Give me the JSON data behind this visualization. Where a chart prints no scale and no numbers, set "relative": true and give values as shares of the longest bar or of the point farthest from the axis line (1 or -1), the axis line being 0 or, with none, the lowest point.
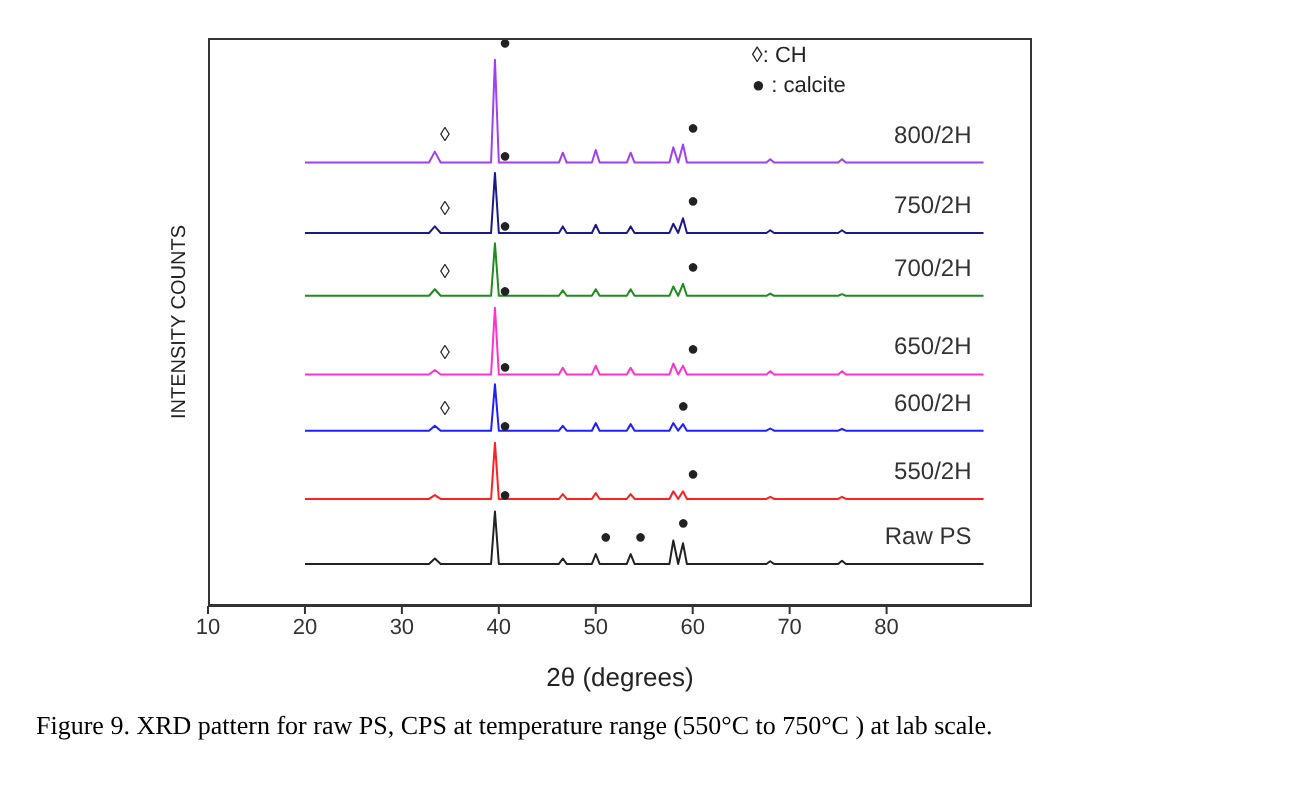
{
  "chart_data": {
    "type": "line",
    "relative": true,
    "xlabel": "2θ (degrees)",
    "ylabel": "INTENSITY COUNTS",
    "xlim": [
      10,
      95
    ],
    "xticks": [
      10,
      20,
      30,
      40,
      50,
      60,
      70,
      80
    ],
    "grid": false,
    "legend": false,
    "marker": "none",
    "line_style": "solid",
    "x": [
      20,
      30,
      32.8,
      33.4,
      34,
      39.2,
      39.6,
      40.0,
      46.2,
      46.6,
      47.0,
      49.6,
      50.0,
      50.4,
      53.2,
      53.6,
      54.0,
      57.6,
      58.0,
      58.5,
      59.0,
      59.4,
      67.6,
      68,
      68.4,
      75,
      75.4,
      75.8,
      90
    ],
    "series": [
      {
        "name": "800/2H",
        "color": "#a040f0",
        "values": [
          0.812,
          0.812,
          0.812,
          0.832,
          0.812,
          0.812,
          1.0,
          0.812,
          0.812,
          0.83,
          0.812,
          0.812,
          0.835,
          0.812,
          0.812,
          0.83,
          0.812,
          0.812,
          0.84,
          0.812,
          0.845,
          0.812,
          0.812,
          0.818,
          0.812,
          0.812,
          0.818,
          0.812,
          0.812
        ]
      },
      {
        "name": "750/2H",
        "color": "#1a1a8c",
        "values": [
          0.683,
          0.683,
          0.683,
          0.695,
          0.683,
          0.683,
          0.793,
          0.683,
          0.683,
          0.695,
          0.683,
          0.683,
          0.698,
          0.683,
          0.683,
          0.695,
          0.683,
          0.683,
          0.7,
          0.683,
          0.71,
          0.683,
          0.683,
          0.688,
          0.683,
          0.683,
          0.688,
          0.683,
          0.683
        ]
      },
      {
        "name": "700/2H",
        "color": "#1e8c1e",
        "values": [
          0.568,
          0.568,
          0.568,
          0.58,
          0.568,
          0.568,
          0.664,
          0.568,
          0.568,
          0.578,
          0.568,
          0.568,
          0.58,
          0.568,
          0.568,
          0.58,
          0.568,
          0.568,
          0.585,
          0.568,
          0.59,
          0.568,
          0.568,
          0.572,
          0.568,
          0.568,
          0.571,
          0.568,
          0.568
        ]
      },
      {
        "name": "650/2H",
        "color": "#ff33cc",
        "values": [
          0.424,
          0.424,
          0.424,
          0.432,
          0.424,
          0.424,
          0.546,
          0.424,
          0.424,
          0.436,
          0.424,
          0.424,
          0.44,
          0.424,
          0.424,
          0.436,
          0.424,
          0.424,
          0.444,
          0.424,
          0.44,
          0.424,
          0.424,
          0.43,
          0.424,
          0.424,
          0.43,
          0.424,
          0.424
        ]
      },
      {
        "name": "600/2H",
        "color": "#1f1fff",
        "values": [
          0.321,
          0.321,
          0.321,
          0.33,
          0.321,
          0.321,
          0.406,
          0.321,
          0.321,
          0.33,
          0.321,
          0.321,
          0.335,
          0.321,
          0.321,
          0.333,
          0.321,
          0.321,
          0.335,
          0.321,
          0.333,
          0.321,
          0.321,
          0.325,
          0.321,
          0.321,
          0.324,
          0.321,
          0.321
        ]
      },
      {
        "name": "550/2H",
        "color": "#ff2020",
        "values": [
          0.196,
          0.196,
          0.196,
          0.203,
          0.196,
          0.196,
          0.299,
          0.196,
          0.196,
          0.205,
          0.196,
          0.196,
          0.207,
          0.196,
          0.196,
          0.205,
          0.196,
          0.196,
          0.21,
          0.196,
          0.21,
          0.196,
          0.196,
          0.2,
          0.196,
          0.196,
          0.2,
          0.196,
          0.196
        ]
      },
      {
        "name": "Raw PS",
        "color": "#222222",
        "values": [
          0.077,
          0.077,
          0.077,
          0.087,
          0.077,
          0.077,
          0.173,
          0.077,
          0.077,
          0.087,
          0.077,
          0.077,
          0.095,
          0.077,
          0.077,
          0.095,
          0.077,
          0.077,
          0.12,
          0.077,
          0.115,
          0.077,
          0.077,
          0.082,
          0.077,
          0.077,
          0.083,
          0.077,
          0.077
        ]
      }
    ],
    "annotations": [
      "◊: CH",
      "● : calcite",
      {
        "text": "●",
        "x": 39.6,
        "y": 1.0
      },
      {
        "text": "●",
        "x": 59.0,
        "y": 0.845
      },
      {
        "text": "◊",
        "x": 33.4,
        "y": 0.832
      },
      {
        "text": "●",
        "x": 39.6,
        "y": 0.793
      },
      {
        "text": "●",
        "x": 59.0,
        "y": 0.71
      },
      {
        "text": "◊",
        "x": 33.4,
        "y": 0.695
      },
      {
        "text": "●",
        "x": 39.6,
        "y": 0.664
      },
      {
        "text": "●",
        "x": 59.0,
        "y": 0.59
      },
      {
        "text": "◊",
        "x": 33.4,
        "y": 0.58
      },
      {
        "text": "●",
        "x": 39.6,
        "y": 0.546
      },
      {
        "text": "●",
        "x": 59.0,
        "y": 0.44
      },
      {
        "text": "◊",
        "x": 33.4,
        "y": 0.432
      },
      {
        "text": "●",
        "x": 39.6,
        "y": 0.406
      },
      {
        "text": "●",
        "x": 58.0,
        "y": 0.335
      },
      {
        "text": "◊",
        "x": 33.4,
        "y": 0.33
      },
      {
        "text": "●",
        "x": 39.6,
        "y": 0.299
      },
      {
        "text": "●",
        "x": 59.0,
        "y": 0.21
      },
      {
        "text": "●",
        "x": 39.6,
        "y": 0.173
      },
      {
        "text": "●",
        "x": 50.0,
        "y": 0.095
      },
      {
        "text": "●",
        "x": 53.6,
        "y": 0.095
      },
      {
        "text": "●",
        "x": 58.0,
        "y": 0.12
      },
      "Figure 9. XRD pattern for raw PS, CPS at temperature range (550°C to 750°C ) at lab scale."
    ]
  }
}
